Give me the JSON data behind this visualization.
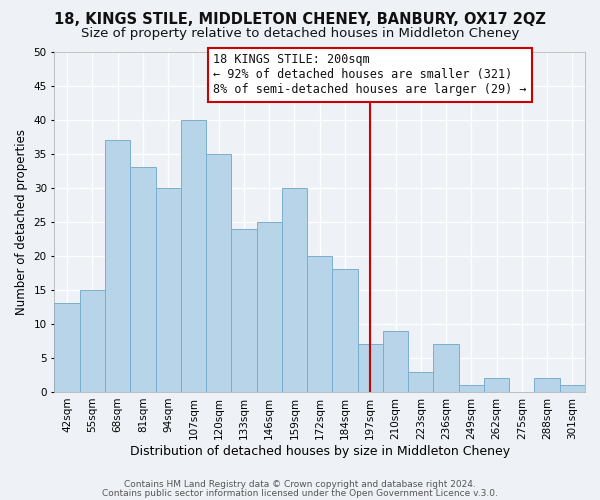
{
  "title": "18, KINGS STILE, MIDDLETON CHENEY, BANBURY, OX17 2QZ",
  "subtitle": "Size of property relative to detached houses in Middleton Cheney",
  "xlabel": "Distribution of detached houses by size in Middleton Cheney",
  "ylabel": "Number of detached properties",
  "bar_color": "#b8d4e8",
  "bar_edge_color": "#7aaed0",
  "categories": [
    "42sqm",
    "55sqm",
    "68sqm",
    "81sqm",
    "94sqm",
    "107sqm",
    "120sqm",
    "133sqm",
    "146sqm",
    "159sqm",
    "172sqm",
    "184sqm",
    "197sqm",
    "210sqm",
    "223sqm",
    "236sqm",
    "249sqm",
    "262sqm",
    "275sqm",
    "288sqm",
    "301sqm"
  ],
  "values": [
    13,
    15,
    37,
    33,
    30,
    40,
    35,
    24,
    25,
    30,
    20,
    18,
    7,
    9,
    3,
    7,
    1,
    2,
    0,
    2,
    1
  ],
  "ylim": [
    0,
    50
  ],
  "yticks": [
    0,
    5,
    10,
    15,
    20,
    25,
    30,
    35,
    40,
    45,
    50
  ],
  "vline_x_idx": 12,
  "vline_color": "#cc0000",
  "annotation_title": "18 KINGS STILE: 200sqm",
  "annotation_line1": "← 92% of detached houses are smaller (321)",
  "annotation_line2": "8% of semi-detached houses are larger (29) →",
  "annotation_box_color": "#ffffff",
  "annotation_box_edge": "#cc0000",
  "footer1": "Contains HM Land Registry data © Crown copyright and database right 2024.",
  "footer2": "Contains public sector information licensed under the Open Government Licence v.3.0.",
  "background_color": "#eef2f7",
  "grid_color": "#ffffff",
  "title_fontsize": 10.5,
  "subtitle_fontsize": 9.5,
  "xlabel_fontsize": 9,
  "ylabel_fontsize": 8.5,
  "tick_fontsize": 7.5,
  "annotation_fontsize": 8.5,
  "footer_fontsize": 6.5
}
